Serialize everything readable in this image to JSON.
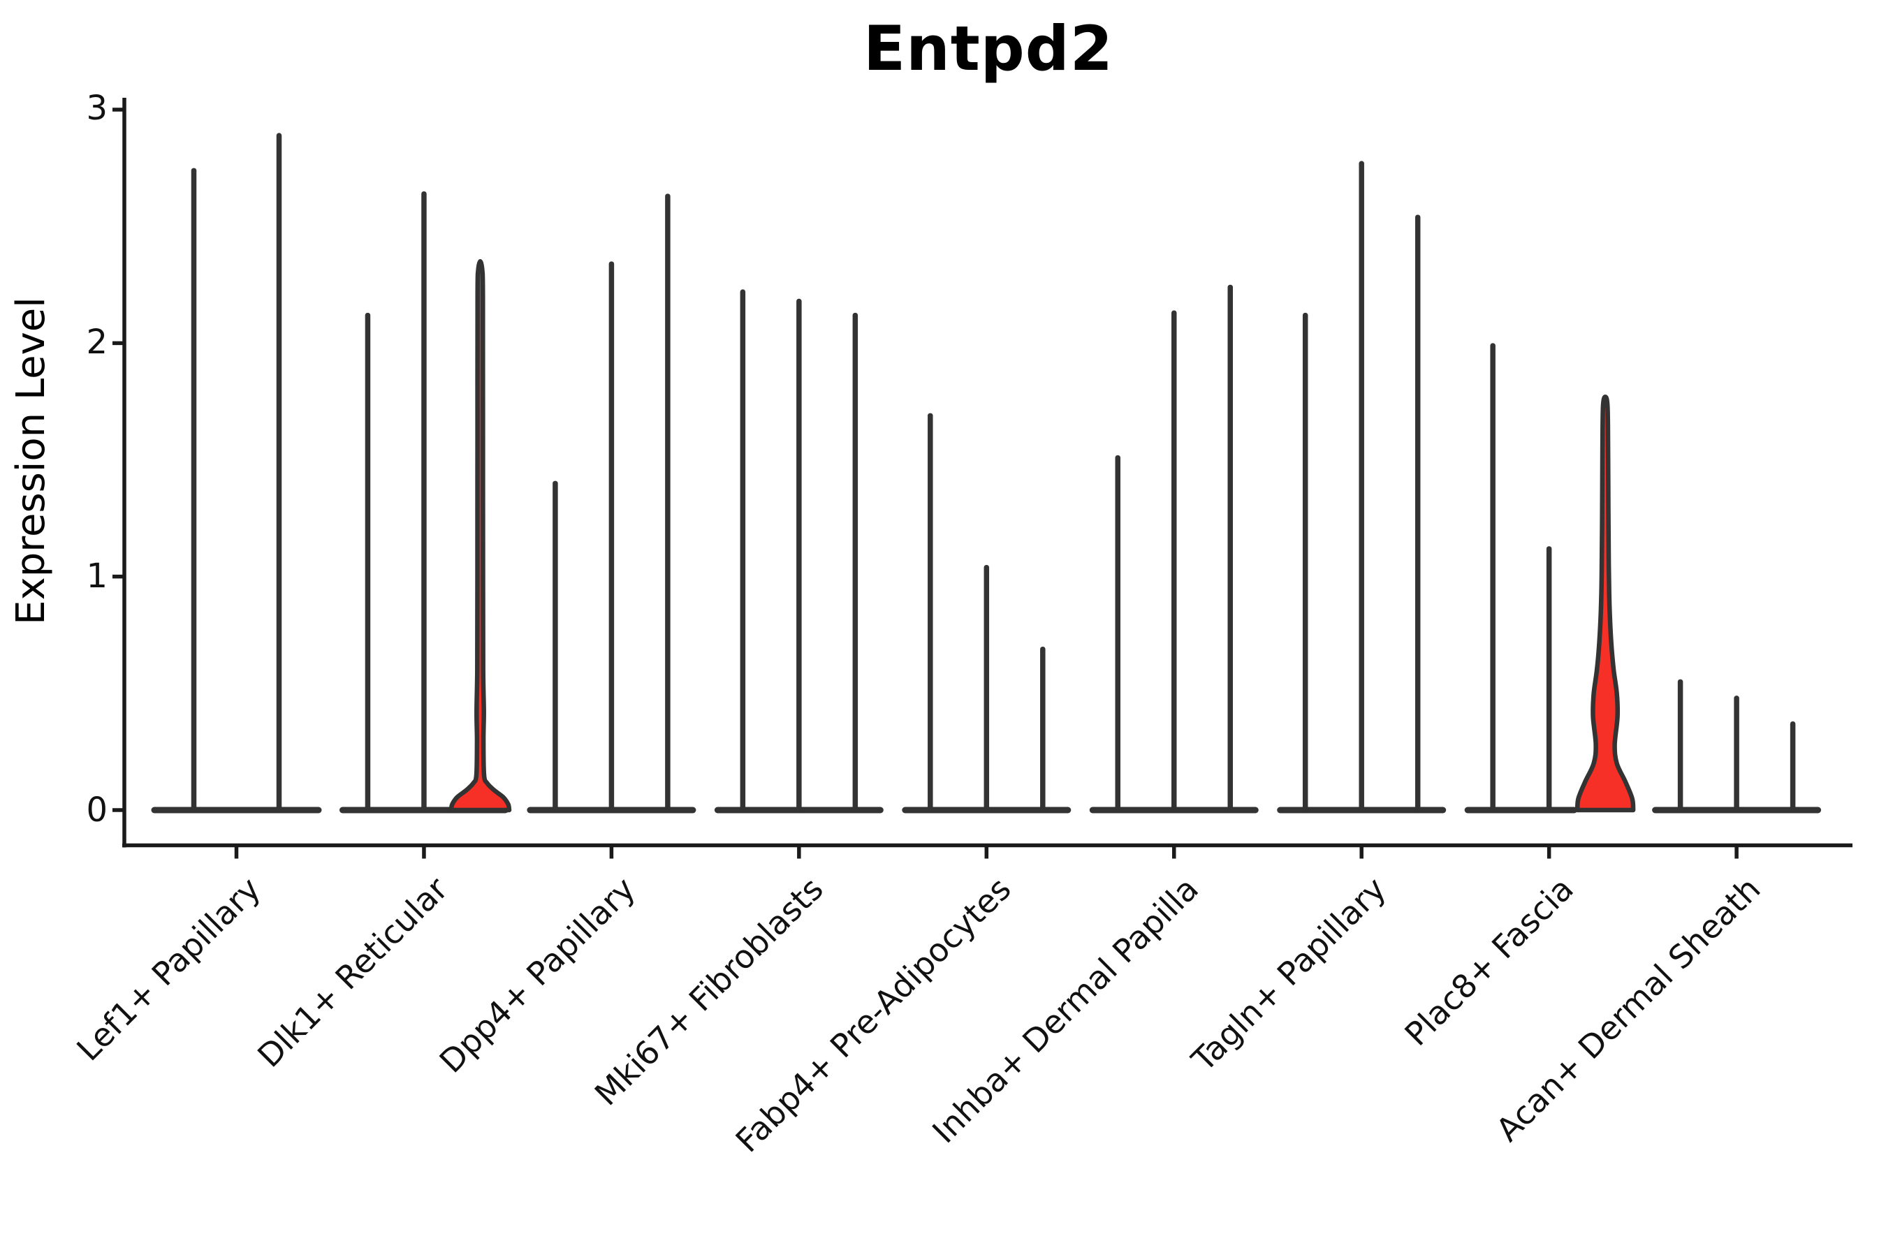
{
  "title": "Entpd2",
  "y_axis": {
    "label": "Expression Level",
    "tick_labels": [
      "0",
      "1",
      "2",
      "3"
    ]
  },
  "colors": {
    "violin_stroke": "#333333",
    "axis": "#1a1a1a",
    "highlight_fill": "#f63026",
    "background": "#ffffff"
  },
  "chart_data": {
    "type": "violin",
    "title": "Entpd2",
    "ylabel": "Expression Level",
    "xlabel": "",
    "ylim": [
      0,
      3
    ],
    "yticks": [
      0,
      1,
      2,
      3
    ],
    "grid": false,
    "legend": "none",
    "description": "Violin plot of Entpd2 expression; each cell-type category contains thin violins (mostly zero-inflated spikes). Two violins are highlighted in red.",
    "categories": [
      "Lef1+ Papillary",
      "Dlk1+ Reticular",
      "Dpp4+ Papillary",
      "Mki67+ Fibroblasts",
      "Fabp4+ Pre-Adipocytes",
      "Inhba+ Dermal Papilla",
      "Tagln+ Papillary",
      "Plac8+ Fascia",
      "Acan+ Dermal Sheath"
    ],
    "groups": [
      {
        "category": "Lef1+ Papillary",
        "violins": [
          {
            "peak": 2.75
          },
          {
            "peak": 2.9
          }
        ]
      },
      {
        "category": "Dlk1+ Reticular",
        "violins": [
          {
            "peak": 2.13
          },
          {
            "peak": 2.65
          },
          {
            "peak": 2.35,
            "highlighted": true,
            "profile": [
              [
                0,
                41.5
              ],
              [
                0.025,
                40
              ],
              [
                0.055,
                33
              ],
              [
                0.085,
                20
              ],
              [
                0.115,
                10
              ],
              [
                0.15,
                5.5
              ],
              [
                0.3,
                4.6
              ],
              [
                0.42,
                5.2
              ],
              [
                0.6,
                4.2
              ],
              [
                1.0,
                4.0
              ],
              [
                1.6,
                3.9
              ],
              [
                2.2,
                3.8
              ],
              [
                2.31,
                3.0
              ],
              [
                2.35,
                0
              ]
            ]
          }
        ]
      },
      {
        "category": "Dpp4+ Papillary",
        "violins": [
          {
            "peak": 1.41
          },
          {
            "peak": 2.35
          },
          {
            "peak": 2.64
          }
        ]
      },
      {
        "category": "Mki67+ Fibroblasts",
        "violins": [
          {
            "peak": 2.23
          },
          {
            "peak": 2.19
          },
          {
            "peak": 2.13
          }
        ]
      },
      {
        "category": "Fabp4+ Pre-Adipocytes",
        "violins": [
          {
            "peak": 1.7
          },
          {
            "peak": 1.05
          },
          {
            "peak": 0.7
          }
        ]
      },
      {
        "category": "Inhba+ Dermal Papilla",
        "violins": [
          {
            "peak": 1.52
          },
          {
            "peak": 2.14
          },
          {
            "peak": 2.25
          }
        ]
      },
      {
        "category": "Tagln+ Papillary",
        "violins": [
          {
            "peak": 2.13
          },
          {
            "peak": 2.78
          },
          {
            "peak": 2.55
          }
        ]
      },
      {
        "category": "Plac8+ Fascia",
        "violins": [
          {
            "peak": 2.0
          },
          {
            "peak": 1.13
          },
          {
            "peak": 1.77,
            "highlighted": true,
            "own_base": true,
            "profile": [
              [
                0,
                40
              ],
              [
                0.05,
                38.5
              ],
              [
                0.12,
                29
              ],
              [
                0.2,
                16.5
              ],
              [
                0.28,
                13.5
              ],
              [
                0.4,
                17.5
              ],
              [
                0.5,
                16.5
              ],
              [
                0.6,
                12
              ],
              [
                0.72,
                8.5
              ],
              [
                0.88,
                6
              ],
              [
                1.05,
                5
              ],
              [
                1.3,
                4.4
              ],
              [
                1.55,
                4.0
              ],
              [
                1.73,
                3.2
              ],
              [
                1.77,
                0
              ]
            ]
          }
        ]
      },
      {
        "category": "Acan+ Dermal Sheath",
        "violins": [
          {
            "peak": 0.56
          },
          {
            "peak": 0.49
          },
          {
            "peak": 0.38
          }
        ]
      }
    ]
  }
}
